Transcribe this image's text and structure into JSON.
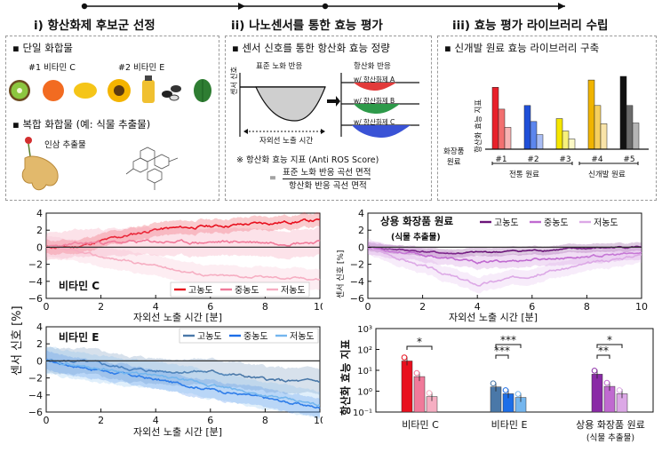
{
  "steps": {
    "s1": "i) 항산화제 후보군 선정",
    "s2": "ii) 나노센서를 통한 효능 평가",
    "s3": "iii) 효능 평가 라이브러리 수립"
  },
  "panel1": {
    "single": "▪ 단일 화합물",
    "label1": "#1 비타민 C",
    "label2": "#2 비타민 E",
    "complex": "▪ 복합 화합물 (예: 식물 추출물)",
    "ginseng": "인삼 추출물"
  },
  "panel2": {
    "heading": "▪ 센서 신호를 통한 항산화 효능 정량",
    "std": "표준 노화 반응",
    "anti": "항산화 반응",
    "yaxis": "센서 신호",
    "xaxis": "자외선 노출 시간",
    "wa": "w/ 항산화제 A",
    "wb": "w/ 항산화제 B",
    "wc": "w/ 항산화제 C",
    "note": "※ 항산화 효능 지표 (Anti ROS Score)",
    "eq": "=",
    "num": "표준 노화 반응 곡선 면적",
    "den": "항산화 반응 곡선 면적"
  },
  "panel3": {
    "heading": "▪ 신개발 원료 효능 라이브러리 구축",
    "yaxis": "항산화 효능 지표",
    "rowlabel1": "화장품",
    "rowlabel2": "원료",
    "cats": [
      "#1",
      "#2",
      "#3",
      "#4",
      "#5"
    ],
    "g1": "전통 원료",
    "g2": "신개발 원료",
    "bars": [
      {
        "colors": [
          "#e8202a",
          "#f27070",
          "#f7b3b3"
        ],
        "values": [
          0.85,
          0.55,
          0.3
        ]
      },
      {
        "colors": [
          "#1f4fd8",
          "#5c86ee",
          "#a9bdf5"
        ],
        "values": [
          0.6,
          0.38,
          0.2
        ]
      },
      {
        "colors": [
          "#f5e600",
          "#f7f07a",
          "#fbf8c6"
        ],
        "values": [
          0.42,
          0.25,
          0.14
        ]
      },
      {
        "colors": [
          "#f0b400",
          "#f5cf5e",
          "#f9e4a9"
        ],
        "values": [
          0.95,
          0.6,
          0.35
        ]
      },
      {
        "colors": [
          "#111111",
          "#6b6b6b",
          "#b5b5b5"
        ],
        "values": [
          1.0,
          0.6,
          0.36
        ]
      }
    ]
  },
  "chartC": {
    "title": "비타민 C",
    "legend": [
      "고농도",
      "중농도",
      "저농도"
    ],
    "colors": [
      "#e8101e",
      "#f07a9a",
      "#f6aec2"
    ],
    "ylim": [
      -6,
      4
    ],
    "yticks": [
      "4",
      "2",
      "0",
      "−2",
      "−4",
      "−6"
    ],
    "xticks": [
      "0",
      "2",
      "4",
      "6",
      "8",
      "10"
    ]
  },
  "chartE": {
    "title": "비타민 E",
    "legend": [
      "고농도",
      "중농도",
      "저농도"
    ],
    "colors": [
      "#4a78a8",
      "#1c6ee8",
      "#74b6ee"
    ],
    "ylim": [
      -6,
      4
    ],
    "yticks": [
      "4",
      "2",
      "0",
      "−2",
      "−4",
      "−6"
    ],
    "xticks": [
      "0",
      "2",
      "4",
      "6",
      "8",
      "10"
    ]
  },
  "chartR": {
    "title": "상용 화장품 원료",
    "subtitle": "(식물 추출물)",
    "legend": [
      "고농도",
      "중농도",
      "저농도"
    ],
    "colors": [
      "#6a1478",
      "#c06ad0",
      "#dca8e6"
    ],
    "ylim": [
      -6,
      4
    ],
    "yticks": [
      "4",
      "2",
      "0",
      "−2",
      "−4",
      "−6"
    ],
    "xticks": [
      "0",
      "2",
      "4",
      "6",
      "8",
      "10"
    ]
  },
  "shared": {
    "ylabel": "센서 신호 [%]",
    "xlabel": "자외선 노출 시간 [분]",
    "ylabel_small": "센서 신호 [%]"
  },
  "chart_data": {
    "type": "bar",
    "ylabel": "항산화 효능 지표",
    "yscale": "log",
    "ylim": [
      0.1,
      1000
    ],
    "yticks": [
      "10³",
      "10²",
      "10¹",
      "10⁰",
      "10⁻¹"
    ],
    "categories": [
      "비타민 C",
      "비타민 E",
      "상용 화장품 원료"
    ],
    "cat_sub": [
      "",
      "",
      "(식물 추출물)"
    ],
    "series": [
      {
        "values": [
          28,
          1.6,
          6.5
        ],
        "colors": [
          "#e8101e",
          "#4a78a8",
          "#8a2aa6"
        ]
      },
      {
        "values": [
          5,
          0.75,
          1.7
        ],
        "colors": [
          "#f07a9a",
          "#1c6ee8",
          "#c06ad0"
        ]
      },
      {
        "values": [
          0.55,
          0.5,
          0.75
        ],
        "colors": [
          "#f6aec2",
          "#74b6ee",
          "#dca8e6"
        ]
      }
    ],
    "sig": [
      [
        "*"
      ],
      [
        "***",
        "***"
      ],
      [
        "*",
        "**"
      ]
    ]
  }
}
